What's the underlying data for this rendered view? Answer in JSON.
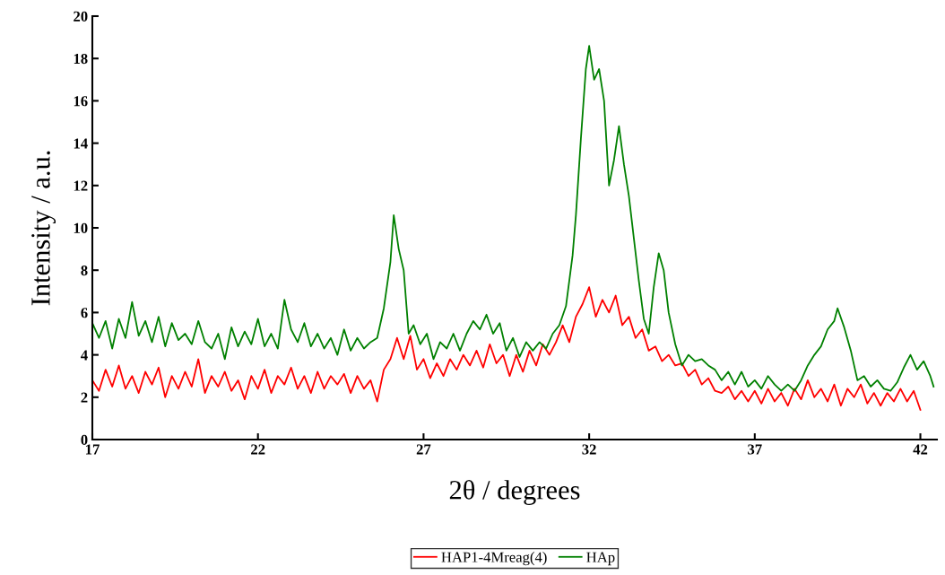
{
  "chart_data": {
    "type": "line",
    "xlabel": "2θ / degrees",
    "ylabel": "Intensity / a.u.",
    "xlim": [
      17,
      42.5
    ],
    "xticks": [
      17,
      22,
      27,
      32,
      37,
      42
    ],
    "ylim": [
      0,
      20
    ],
    "yticks": [
      0,
      2,
      4,
      6,
      8,
      10,
      12,
      14,
      16,
      18,
      20
    ],
    "grid": false,
    "legend": "bottom",
    "marker": "none",
    "line_style": "solid",
    "series": [
      {
        "name": "HAP1-4Mreag(4)",
        "color": "#ff0000",
        "x": [
          17,
          17.2,
          17.4,
          17.6,
          17.8,
          18.0,
          18.2,
          18.4,
          18.6,
          18.8,
          19.0,
          19.2,
          19.4,
          19.6,
          19.8,
          20.0,
          20.2,
          20.4,
          20.6,
          20.8,
          21.0,
          21.2,
          21.4,
          21.6,
          21.8,
          22.0,
          22.2,
          22.4,
          22.6,
          22.8,
          23.0,
          23.2,
          23.4,
          23.6,
          23.8,
          24.0,
          24.2,
          24.4,
          24.6,
          24.8,
          25.0,
          25.2,
          25.4,
          25.6,
          25.8,
          26.0,
          26.2,
          26.4,
          26.6,
          26.8,
          27.0,
          27.2,
          27.4,
          27.6,
          27.8,
          28.0,
          28.2,
          28.4,
          28.6,
          28.8,
          29.0,
          29.2,
          29.4,
          29.6,
          29.8,
          30.0,
          30.2,
          30.4,
          30.6,
          30.8,
          31.0,
          31.2,
          31.4,
          31.6,
          31.8,
          32.0,
          32.2,
          32.4,
          32.6,
          32.8,
          33.0,
          33.2,
          33.4,
          33.6,
          33.8,
          34.0,
          34.2,
          34.4,
          34.6,
          34.8,
          35.0,
          35.2,
          35.4,
          35.6,
          35.8,
          36.0,
          36.2,
          36.4,
          36.6,
          36.8,
          37.0,
          37.2,
          37.4,
          37.6,
          37.8,
          38.0,
          38.2,
          38.4,
          38.6,
          38.8,
          39.0,
          39.2,
          39.4,
          39.6,
          39.8,
          40.0,
          40.2,
          40.4,
          40.6,
          40.8,
          41.0,
          41.2,
          41.4,
          41.6,
          41.8,
          42.0
        ],
        "values": [
          2.8,
          2.3,
          3.3,
          2.5,
          3.5,
          2.4,
          3.0,
          2.2,
          3.2,
          2.6,
          3.4,
          2.0,
          3.0,
          2.4,
          3.2,
          2.5,
          3.8,
          2.2,
          3.0,
          2.5,
          3.2,
          2.3,
          2.8,
          1.9,
          3.0,
          2.4,
          3.3,
          2.2,
          3.0,
          2.6,
          3.4,
          2.4,
          3.0,
          2.2,
          3.2,
          2.4,
          3.0,
          2.6,
          3.1,
          2.2,
          3.0,
          2.4,
          2.8,
          1.8,
          3.3,
          3.8,
          4.8,
          3.8,
          4.9,
          3.3,
          3.8,
          2.9,
          3.6,
          3.0,
          3.8,
          3.3,
          4.0,
          3.5,
          4.2,
          3.4,
          4.5,
          3.6,
          4.0,
          3.0,
          4.0,
          3.2,
          4.2,
          3.5,
          4.5,
          4.0,
          4.6,
          5.4,
          4.6,
          5.8,
          6.4,
          7.2,
          5.8,
          6.6,
          6.0,
          6.8,
          5.4,
          5.8,
          4.8,
          5.2,
          4.2,
          4.4,
          3.7,
          4.0,
          3.5,
          3.6,
          3.0,
          3.3,
          2.6,
          2.9,
          2.3,
          2.2,
          2.5,
          1.9,
          2.3,
          1.8,
          2.3,
          1.7,
          2.4,
          1.8,
          2.2,
          1.6,
          2.4,
          1.9,
          2.8,
          2.0,
          2.4,
          1.8,
          2.6,
          1.6,
          2.4,
          2.0,
          2.6,
          1.7,
          2.2,
          1.6,
          2.2,
          1.8,
          2.4,
          1.8,
          2.3,
          1.4
        ]
      },
      {
        "name": "HAp",
        "color": "#008000",
        "x": [
          17,
          17.2,
          17.4,
          17.6,
          17.8,
          18.0,
          18.2,
          18.4,
          18.6,
          18.8,
          19.0,
          19.2,
          19.4,
          19.6,
          19.8,
          20.0,
          20.2,
          20.4,
          20.6,
          20.8,
          21.0,
          21.2,
          21.4,
          21.6,
          21.8,
          22.0,
          22.2,
          22.4,
          22.6,
          22.8,
          23.0,
          23.2,
          23.4,
          23.6,
          23.8,
          24.0,
          24.2,
          24.4,
          24.6,
          24.8,
          25.0,
          25.2,
          25.4,
          25.6,
          25.8,
          26.0,
          26.1,
          26.25,
          26.4,
          26.55,
          26.7,
          26.9,
          27.1,
          27.3,
          27.5,
          27.7,
          27.9,
          28.1,
          28.3,
          28.5,
          28.7,
          28.9,
          29.1,
          29.3,
          29.5,
          29.7,
          29.9,
          30.1,
          30.3,
          30.5,
          30.7,
          30.9,
          31.1,
          31.3,
          31.5,
          31.6,
          31.75,
          31.9,
          32.0,
          32.15,
          32.3,
          32.45,
          32.6,
          32.75,
          32.9,
          33.05,
          33.2,
          33.35,
          33.5,
          33.65,
          33.8,
          33.95,
          34.1,
          34.25,
          34.4,
          34.6,
          34.8,
          35.0,
          35.2,
          35.4,
          35.6,
          35.8,
          36.0,
          36.2,
          36.4,
          36.6,
          36.8,
          37.0,
          37.2,
          37.4,
          37.6,
          37.8,
          38.0,
          38.2,
          38.4,
          38.6,
          38.8,
          39.0,
          39.2,
          39.4,
          39.5,
          39.7,
          39.9,
          40.1,
          40.3,
          40.5,
          40.7,
          40.9,
          41.1,
          41.3,
          41.5,
          41.7,
          41.9,
          42.1,
          42.3,
          42.4
        ],
        "values": [
          5.5,
          4.8,
          5.6,
          4.3,
          5.7,
          4.8,
          6.5,
          4.9,
          5.6,
          4.6,
          5.8,
          4.4,
          5.5,
          4.7,
          5.0,
          4.5,
          5.6,
          4.6,
          4.3,
          5.0,
          3.8,
          5.3,
          4.4,
          5.1,
          4.5,
          5.7,
          4.4,
          5.0,
          4.3,
          6.6,
          5.2,
          4.6,
          5.5,
          4.4,
          5.0,
          4.3,
          4.8,
          4.0,
          5.2,
          4.2,
          4.8,
          4.3,
          4.6,
          4.8,
          6.2,
          8.4,
          10.6,
          9.0,
          8.0,
          5.0,
          5.4,
          4.5,
          5.0,
          3.8,
          4.6,
          4.3,
          5.0,
          4.2,
          5.0,
          5.6,
          5.2,
          5.9,
          5.0,
          5.5,
          4.2,
          4.8,
          3.9,
          4.6,
          4.2,
          4.6,
          4.3,
          5.0,
          5.4,
          6.3,
          8.7,
          10.6,
          14.2,
          17.5,
          18.6,
          17.0,
          17.5,
          16.0,
          12.0,
          13.2,
          14.8,
          13.0,
          11.5,
          9.5,
          7.5,
          5.7,
          5.0,
          7.2,
          8.8,
          8.0,
          6.0,
          4.5,
          3.5,
          4.0,
          3.7,
          3.8,
          3.5,
          3.3,
          2.8,
          3.2,
          2.6,
          3.2,
          2.5,
          2.8,
          2.4,
          3.0,
          2.6,
          2.3,
          2.6,
          2.3,
          2.8,
          3.5,
          4.0,
          4.4,
          5.2,
          5.6,
          6.2,
          5.3,
          4.2,
          2.8,
          3.0,
          2.5,
          2.8,
          2.4,
          2.3,
          2.7,
          3.4,
          4.0,
          3.3,
          3.7,
          3.0,
          2.5
        ]
      }
    ]
  }
}
